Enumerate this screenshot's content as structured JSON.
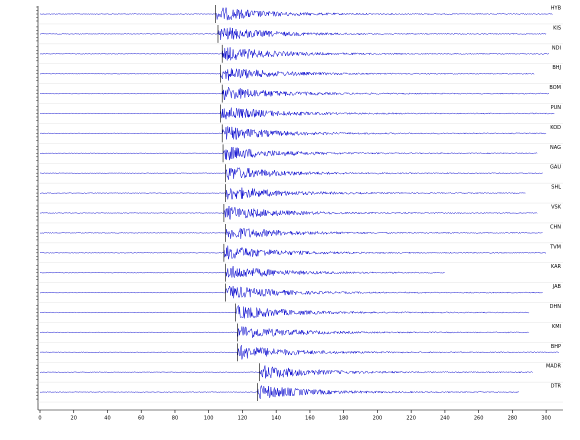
{
  "chart_data": {
    "type": "seismogram",
    "xlim": [
      0,
      310
    ],
    "xticks": [
      0,
      20,
      40,
      60,
      80,
      100,
      120,
      140,
      160,
      180,
      200,
      220,
      240,
      260,
      280,
      300
    ],
    "color": "#0000cc",
    "series": [
      {
        "name": "HYB",
        "onset": 104,
        "end": 304
      },
      {
        "name": "KIS",
        "onset": 105.5,
        "end": 300
      },
      {
        "name": "NDI",
        "onset": 108,
        "end": 302
      },
      {
        "name": "BHJ",
        "onset": 107,
        "end": 293
      },
      {
        "name": "BOM",
        "onset": 108,
        "end": 302
      },
      {
        "name": "PUN",
        "onset": 107,
        "end": 305
      },
      {
        "name": "KOD",
        "onset": 108,
        "end": 300
      },
      {
        "name": "NAG",
        "onset": 108.5,
        "end": 295
      },
      {
        "name": "GAU",
        "onset": 110,
        "end": 298
      },
      {
        "name": "SHL",
        "onset": 110,
        "end": 288
      },
      {
        "name": "VSK",
        "onset": 109,
        "end": 295
      },
      {
        "name": "CHN",
        "onset": 110,
        "end": 298
      },
      {
        "name": "TVM",
        "onset": 109,
        "end": 300
      },
      {
        "name": "KAR",
        "onset": 110,
        "end": 240
      },
      {
        "name": "JAB",
        "onset": 110,
        "end": 298
      },
      {
        "name": "DHN",
        "onset": 116,
        "end": 290
      },
      {
        "name": "KMI",
        "onset": 117,
        "end": 290
      },
      {
        "name": "BHP",
        "onset": 117,
        "end": 308
      },
      {
        "name": "MADR",
        "onset": 130,
        "end": 292
      },
      {
        "name": "DTR",
        "onset": 129,
        "end": 284
      }
    ]
  }
}
